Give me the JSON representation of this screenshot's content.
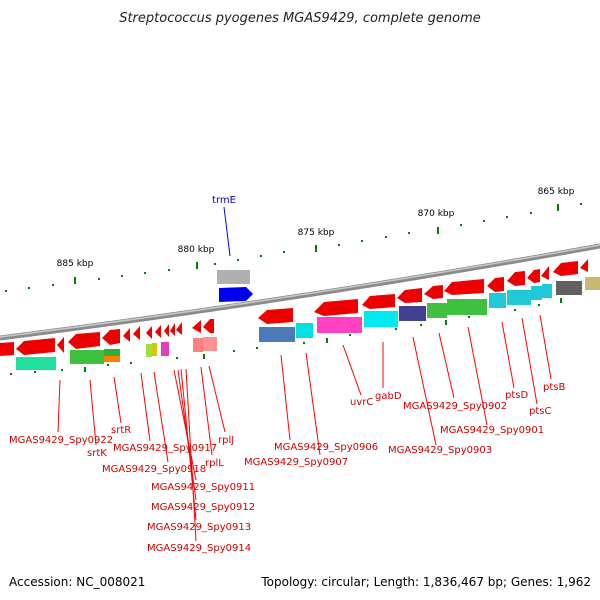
{
  "title": "Streptococcus pyogenes MGAS9429, complete genome",
  "footer": {
    "accession": "Accession: NC_008021",
    "summary": "Topology: circular; Length: 1,836,467 bp; Genes: 1,962"
  },
  "ticks": [
    "865 kbp",
    "870 kbp",
    "875 kbp",
    "880 kbp",
    "885 kbp"
  ],
  "top_labels": [
    "trmE"
  ],
  "bottom_labels": [
    "MGAS9429_Spy0922",
    "srtK",
    "srtR",
    "MGAS9429_Spy0917",
    "MGAS9429_Spy0918",
    "MGAS9429_Spy0911",
    "MGAS9429_Spy0912",
    "MGAS9429_Spy0913",
    "MGAS9429_Spy0914",
    "rplL",
    "rplJ",
    "MGAS9429_Spy0906",
    "MGAS9429_Spy0907",
    "uvrC",
    "gabD",
    "MGAS9429_Spy0902",
    "MGAS9429_Spy0903",
    "MGAS9429_Spy0901",
    "ptsD",
    "ptsC",
    "ptsB"
  ],
  "colors": {
    "forward_gene": "#ff0000",
    "backbone": "#808080",
    "tick": "#008000",
    "label_line": "#ff0000",
    "top_label_line": "#0000ff"
  }
}
